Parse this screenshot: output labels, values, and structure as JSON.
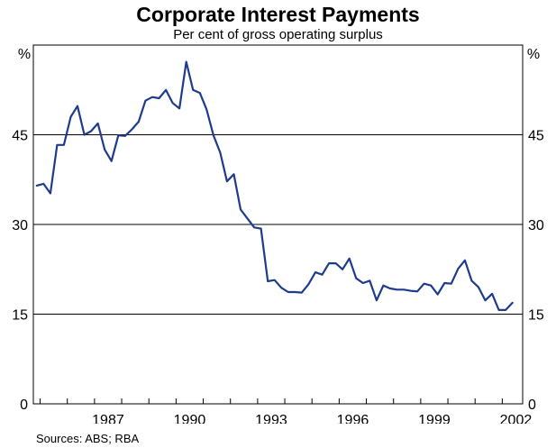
{
  "chart_data": {
    "type": "line",
    "title": "Corporate Interest Payments",
    "subtitle": "Per cent of gross operating surplus",
    "unit_left": "%",
    "unit_right": "%",
    "source": "Sources: ABS; RBA",
    "ylim": [
      0,
      60
    ],
    "yticks": [
      0,
      15,
      30,
      45
    ],
    "xlim": [
      1984.75,
      2002.75
    ],
    "xtick_labels": [
      "1987",
      "1990",
      "1993",
      "1996",
      "1999",
      "2002"
    ],
    "xtick_positions": [
      1987.5,
      1990.5,
      1993.5,
      1996.5,
      1999.5,
      2002.5
    ],
    "grid": true,
    "series": [
      {
        "color": "#1f3c8c",
        "x": [
          1984.875,
          1985.125,
          1985.375,
          1985.625,
          1985.875,
          1986.125,
          1986.375,
          1986.625,
          1986.875,
          1987.125,
          1987.375,
          1987.625,
          1987.875,
          1988.125,
          1988.375,
          1988.625,
          1988.875,
          1989.125,
          1989.375,
          1989.625,
          1989.875,
          1990.125,
          1990.375,
          1990.625,
          1990.875,
          1991.125,
          1991.375,
          1991.625,
          1991.875,
          1992.125,
          1992.375,
          1992.625,
          1992.875,
          1993.125,
          1993.375,
          1993.625,
          1993.875,
          1994.125,
          1994.375,
          1994.625,
          1994.875,
          1995.125,
          1995.375,
          1995.625,
          1995.875,
          1996.125,
          1996.375,
          1996.625,
          1996.875,
          1997.125,
          1997.375,
          1997.625,
          1997.875,
          1998.125,
          1998.375,
          1998.625,
          1998.875,
          1999.125,
          1999.375,
          1999.625,
          1999.875,
          2000.125,
          2000.375,
          2000.625,
          2000.875,
          2001.125,
          2001.375,
          2001.625,
          2001.875,
          2002.125,
          2002.375
        ],
        "values": [
          36.5,
          36.8,
          35.2,
          43.3,
          43.3,
          48.0,
          49.8,
          45.0,
          45.6,
          46.9,
          42.5,
          40.6,
          44.9,
          44.8,
          45.9,
          47.2,
          50.7,
          51.3,
          51.1,
          52.5,
          50.3,
          49.4,
          57.2,
          52.5,
          52.0,
          49.2,
          44.9,
          42.0,
          37.2,
          38.4,
          32.5,
          31.0,
          29.5,
          29.3,
          20.5,
          20.7,
          19.4,
          18.7,
          18.7,
          18.6,
          20.0,
          22.0,
          21.6,
          23.5,
          23.5,
          22.5,
          24.3,
          21.0,
          20.2,
          20.6,
          17.3,
          19.8,
          19.3,
          19.1,
          19.1,
          18.9,
          18.8,
          20.1,
          19.8,
          18.3,
          20.2,
          20.1,
          22.6,
          24.0,
          20.6,
          19.5,
          17.3,
          18.4,
          15.7,
          15.7,
          16.9
        ]
      }
    ]
  }
}
